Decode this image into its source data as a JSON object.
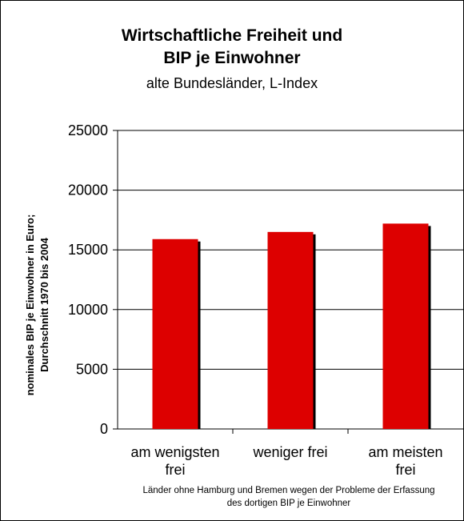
{
  "chart_data": {
    "type": "bar",
    "title": "Wirtschaftliche Freiheit und BIP je Einwohner",
    "title_lines": [
      "Wirtschaftliche Freiheit und",
      "BIP je Einwohner"
    ],
    "subtitle": "alte Bundesländer, L-Index",
    "ylabel_lines": [
      "nominales BIP je Einwohner in Euro;",
      "Durchschnitt 1970 bis 2004"
    ],
    "categories": [
      [
        "am wenigsten",
        "frei"
      ],
      [
        "weniger frei"
      ],
      [
        "am meisten",
        "frei"
      ]
    ],
    "values": [
      15900,
      16500,
      17200
    ],
    "ylim": [
      0,
      25000
    ],
    "yticks": [
      0,
      5000,
      10000,
      15000,
      20000,
      25000
    ],
    "grid": true,
    "legend": "none",
    "bar_color": "#dd0000",
    "shadow_color": "#000000",
    "footnote_lines": [
      "Länder ohne Hamburg und Bremen wegen der Probleme der Erfassung",
      "des dortigen BIP je Einwohner"
    ]
  }
}
